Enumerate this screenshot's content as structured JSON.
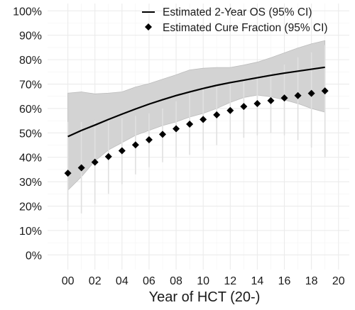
{
  "chart_data": {
    "type": "line",
    "xlabel": "Year of HCT (20-)",
    "ylabel": "",
    "xlim": [
      -1.5,
      20.8
    ],
    "ylim": [
      -0.06,
      1.03
    ],
    "x_ticks": [
      0,
      2,
      4,
      6,
      8,
      10,
      12,
      14,
      16,
      18,
      20
    ],
    "x_tick_labels": [
      "00",
      "02",
      "04",
      "06",
      "08",
      "10",
      "12",
      "14",
      "16",
      "18",
      "20"
    ],
    "y_ticks": [
      0,
      0.1,
      0.2,
      0.3,
      0.4,
      0.5,
      0.6,
      0.7,
      0.8,
      0.9,
      1.0
    ],
    "y_tick_labels": [
      "0%",
      "10%",
      "20%",
      "30%",
      "40%",
      "50%",
      "60%",
      "70%",
      "80%",
      "90%",
      "100%"
    ],
    "grid": true,
    "legend_position": "top-right",
    "series": [
      {
        "name": "Estimated 2-Year OS (95% CI)",
        "kind": "line",
        "color": "#000000",
        "x": [
          0,
          1,
          2,
          3,
          4,
          5,
          6,
          7,
          8,
          9,
          10,
          11,
          12,
          13,
          14,
          15,
          16,
          17,
          18,
          19
        ],
        "y": [
          0.485,
          0.51,
          0.532,
          0.555,
          0.577,
          0.598,
          0.618,
          0.636,
          0.653,
          0.668,
          0.682,
          0.695,
          0.706,
          0.716,
          0.726,
          0.736,
          0.745,
          0.753,
          0.761,
          0.769
        ],
        "ci_lower": [
          0.265,
          0.32,
          0.385,
          0.43,
          0.46,
          0.49,
          0.51,
          0.53,
          0.545,
          0.565,
          0.58,
          0.6,
          0.625,
          0.645,
          0.655,
          0.648,
          0.635,
          0.62,
          0.6,
          0.585
        ],
        "ci_upper": [
          0.663,
          0.668,
          0.66,
          0.663,
          0.668,
          0.688,
          0.702,
          0.72,
          0.738,
          0.758,
          0.765,
          0.768,
          0.768,
          0.778,
          0.79,
          0.808,
          0.828,
          0.848,
          0.865,
          0.878
        ],
        "ci_color": "#d3d3d3"
      },
      {
        "name": "Estimated Cure Fraction (95% CI)",
        "kind": "points",
        "color": "#000000",
        "x": [
          0,
          1,
          2,
          3,
          4,
          5,
          6,
          7,
          8,
          9,
          10,
          11,
          12,
          13,
          14,
          15,
          16,
          17,
          18,
          19
        ],
        "y": [
          0.335,
          0.357,
          0.38,
          0.403,
          0.427,
          0.451,
          0.472,
          0.494,
          0.517,
          0.536,
          0.555,
          0.574,
          0.592,
          0.608,
          0.62,
          0.632,
          0.643,
          0.653,
          0.662,
          0.672
        ],
        "err_lower": [
          0.14,
          0.17,
          0.21,
          0.25,
          0.29,
          0.33,
          0.36,
          0.38,
          0.4,
          0.41,
          0.43,
          0.45,
          0.47,
          0.48,
          0.49,
          0.5,
          0.49,
          0.47,
          0.44,
          0.4
        ],
        "err_upper": [
          0.545,
          0.545,
          0.55,
          0.55,
          0.56,
          0.57,
          0.58,
          0.6,
          0.63,
          0.66,
          0.69,
          0.7,
          0.7,
          0.72,
          0.74,
          0.75,
          0.78,
          0.81,
          0.83,
          0.86
        ],
        "err_color": "#e0e0e0"
      }
    ]
  }
}
